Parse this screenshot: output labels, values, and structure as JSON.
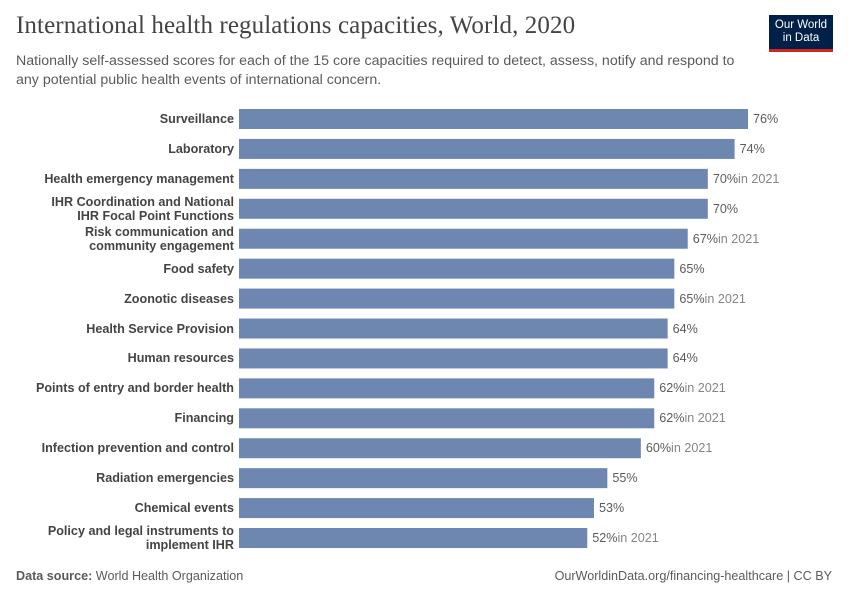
{
  "title": "International health regulations capacities, World, 2020",
  "subtitle": "Nationally self-assessed scores for each of the 15 core capacities required to detect, assess, notify and respond to any potential public health events of international concern.",
  "logo": {
    "line1": "Our World",
    "line2": "in Data",
    "bg": "#002147",
    "accent": "#ce261e"
  },
  "footer": {
    "source_label": "Data source:",
    "source": "World Health Organization",
    "right": "OurWorldinData.org/financing-healthcare | CC BY"
  },
  "chart_data": {
    "type": "bar",
    "orientation": "horizontal",
    "unit": "%",
    "color": "#6d87b1",
    "categories": [
      "Surveillance",
      "Laboratory",
      "Health emergency management",
      "IHR Coordination and National IHR Focal Point Functions",
      "Risk communication and community engagement",
      "Food safety",
      "Zoonotic diseases",
      "Health Service Provision",
      "Human resources",
      "Points of entry and border health",
      "Financing",
      "Infection prevention and control",
      "Radiation emergencies",
      "Chemical events",
      "Policy and legal instruments to implement IHR"
    ],
    "values": [
      76,
      74,
      70,
      70,
      67,
      65,
      65,
      64,
      64,
      62,
      62,
      60,
      55,
      53,
      52
    ],
    "value_labels": [
      "76%",
      "74%",
      "70%",
      "70%",
      "67%",
      "65%",
      "65%",
      "64%",
      "64%",
      "62%",
      "62%",
      "60%",
      "55%",
      "53%",
      "52%"
    ],
    "year_notes": [
      "",
      "",
      "in 2021",
      "",
      "in 2021",
      "",
      "in 2021",
      "",
      "",
      "in 2021",
      "in 2021",
      "in 2021",
      "",
      "",
      "in 2021"
    ]
  }
}
